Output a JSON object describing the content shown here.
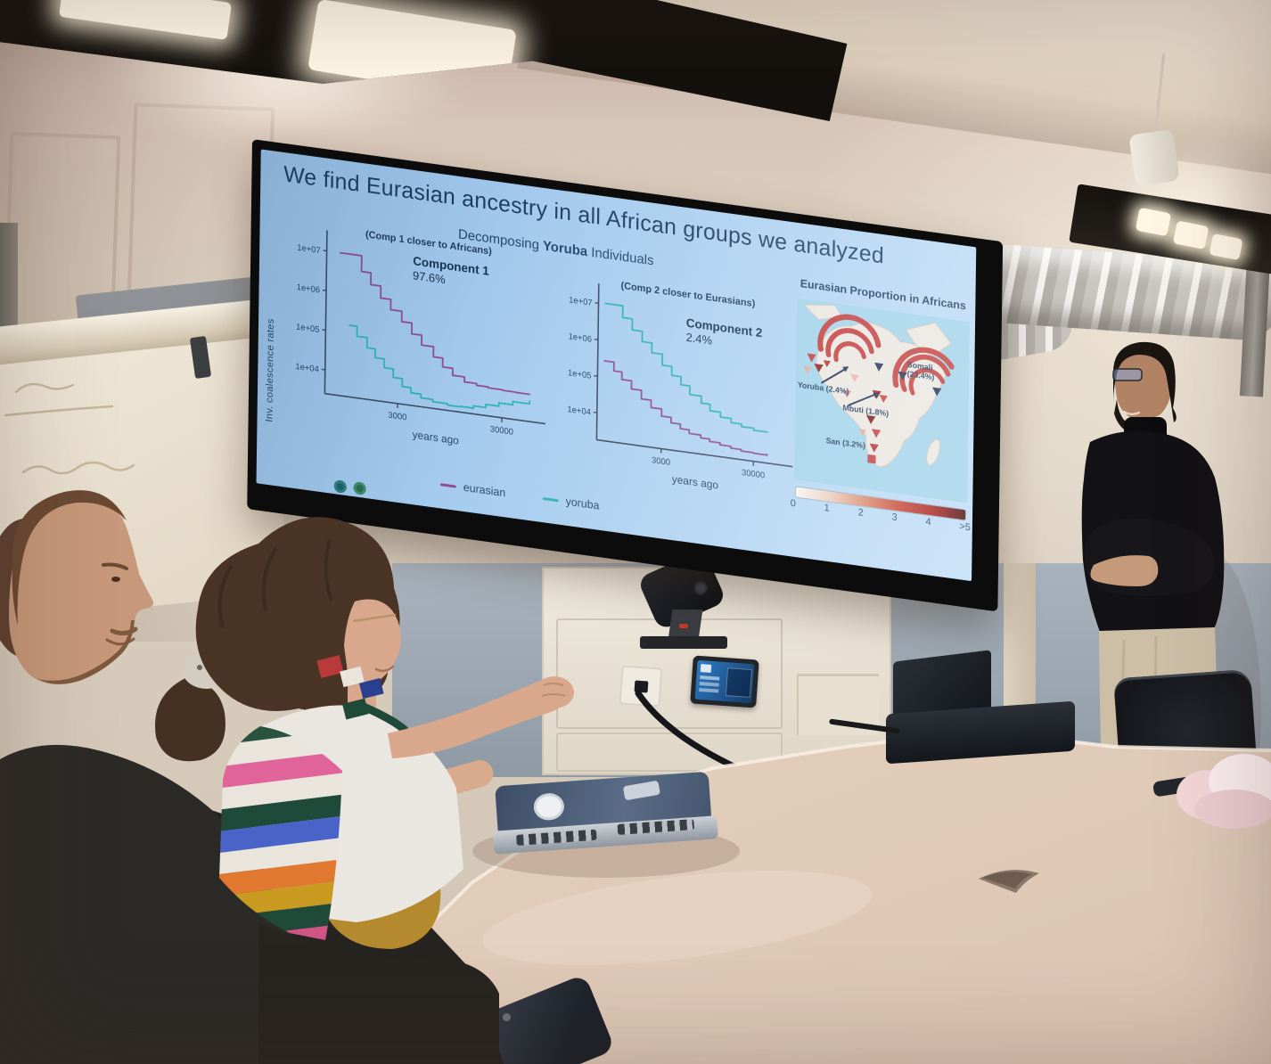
{
  "slide": {
    "title": "We find Eurasian ancestry in all African groups we analyzed",
    "subtitle": {
      "prefix": "Decomposing ",
      "bold": "Yoruba",
      "suffix": " Individuals"
    },
    "ylabel": "Inv. coalescence rates",
    "legend": {
      "eurasian": "eurasian",
      "yoruba": "yoruba"
    },
    "colors": {
      "eurasian": "#8e4d8e",
      "yoruba": "#2fb3b3",
      "title_text": "#1d3a5e",
      "slide_bg": "#a9cfee"
    }
  },
  "chart_data": [
    {
      "type": "line",
      "title": "(Comp 1 closer to Africans)",
      "component_label": "Component 1",
      "component_value": "97.6%",
      "xlabel": "years ago",
      "xscale": "log",
      "yscale": "log",
      "xlim": [
        600,
        70000
      ],
      "ylim": [
        2500,
        22000000
      ],
      "xticks": [
        3000,
        30000
      ],
      "yticks": [
        "1e+07",
        "1e+06",
        "1e+05",
        "1e+04"
      ],
      "annot": [
        0.4,
        0.1
      ],
      "series": [
        {
          "name": "eurasian",
          "color": "#8e4d8e",
          "points": [
            [
              800,
              10000000
            ],
            [
              1100,
              10000000
            ],
            [
              1300,
              4000000
            ],
            [
              1600,
              2000000
            ],
            [
              2000,
              1000000
            ],
            [
              2500,
              550000
            ],
            [
              3200,
              300000
            ],
            [
              4000,
              160000
            ],
            [
              5000,
              90000
            ],
            [
              6500,
              50000
            ],
            [
              8000,
              30000
            ],
            [
              10000,
              20000
            ],
            [
              13000,
              15000
            ],
            [
              17000,
              13500
            ],
            [
              22000,
              12800
            ],
            [
              30000,
              12400
            ],
            [
              40000,
              12200
            ],
            [
              55000,
              12000
            ]
          ]
        },
        {
          "name": "yoruba",
          "color": "#2fb3b3",
          "points": [
            [
              1000,
              160000
            ],
            [
              1200,
              90000
            ],
            [
              1500,
              50000
            ],
            [
              1800,
              30000
            ],
            [
              2200,
              18000
            ],
            [
              2700,
              11000
            ],
            [
              3300,
              7000
            ],
            [
              4000,
              5200
            ],
            [
              5000,
              4200
            ],
            [
              6500,
              3700
            ],
            [
              9000,
              3400
            ],
            [
              12000,
              3500
            ],
            [
              16000,
              4000
            ],
            [
              21000,
              4800
            ],
            [
              28000,
              5800
            ],
            [
              38000,
              7000
            ],
            [
              55000,
              8500
            ]
          ]
        }
      ]
    },
    {
      "type": "line",
      "title": "(Comp 2 closer to Eurasians)",
      "component_label": "Component 2",
      "component_value": "2.4%",
      "xlabel": "years ago",
      "xscale": "log",
      "yscale": "log",
      "xlim": [
        600,
        70000
      ],
      "ylim": [
        1800,
        22000000
      ],
      "xticks": [
        3000,
        30000
      ],
      "yticks": [
        "1e+07",
        "1e+06",
        "1e+05",
        "1e+04"
      ],
      "annot": [
        0.46,
        0.16
      ],
      "series": [
        {
          "name": "yoruba",
          "color": "#2fb3b3",
          "points": [
            [
              700,
              10500000
            ],
            [
              900,
              10500000
            ],
            [
              1100,
              5000000
            ],
            [
              1400,
              2500000
            ],
            [
              1800,
              1300000
            ],
            [
              2300,
              700000
            ],
            [
              3000,
              350000
            ],
            [
              3800,
              200000
            ],
            [
              4800,
              120000
            ],
            [
              6000,
              70000
            ],
            [
              8000,
              45000
            ],
            [
              10000,
              30000
            ],
            [
              13000,
              22000
            ],
            [
              17000,
              17000
            ],
            [
              22000,
              14500
            ],
            [
              30000,
              12800
            ],
            [
              42000,
              12200
            ]
          ]
        },
        {
          "name": "eurasian",
          "color": "#8e4d8e",
          "points": [
            [
              700,
              280000
            ],
            [
              900,
              160000
            ],
            [
              1100,
              100000
            ],
            [
              1400,
              60000
            ],
            [
              1800,
              35000
            ],
            [
              2300,
              22000
            ],
            [
              3000,
              14000
            ],
            [
              3800,
              10000
            ],
            [
              4800,
              7500
            ],
            [
              6000,
              6000
            ],
            [
              8000,
              5000
            ],
            [
              10000,
              4300
            ],
            [
              13000,
              3800
            ],
            [
              17000,
              3400
            ],
            [
              22000,
              3100
            ],
            [
              30000,
              3000
            ],
            [
              42000,
              3300
            ]
          ]
        }
      ]
    },
    {
      "type": "map",
      "title": "Eurasian Proportion in Africans",
      "labels": {
        "yoruba": "Yoruba (2.4%)",
        "mbuti": "Mbuti (1.8%)",
        "san": "San (3.2%)",
        "somali_1": "Somali",
        "somali_2": "(23.4%)"
      },
      "points": [
        {
          "population": "Yoruba",
          "eurasian_pct": 2.4
        },
        {
          "population": "Mbuti",
          "eurasian_pct": 1.8
        },
        {
          "population": "San",
          "eurasian_pct": 3.2
        },
        {
          "population": "Somali",
          "eurasian_pct": 23.4
        }
      ],
      "colorbar": {
        "ticks": [
          "0",
          "1",
          "2",
          "3",
          "4",
          ">5"
        ]
      }
    }
  ]
}
